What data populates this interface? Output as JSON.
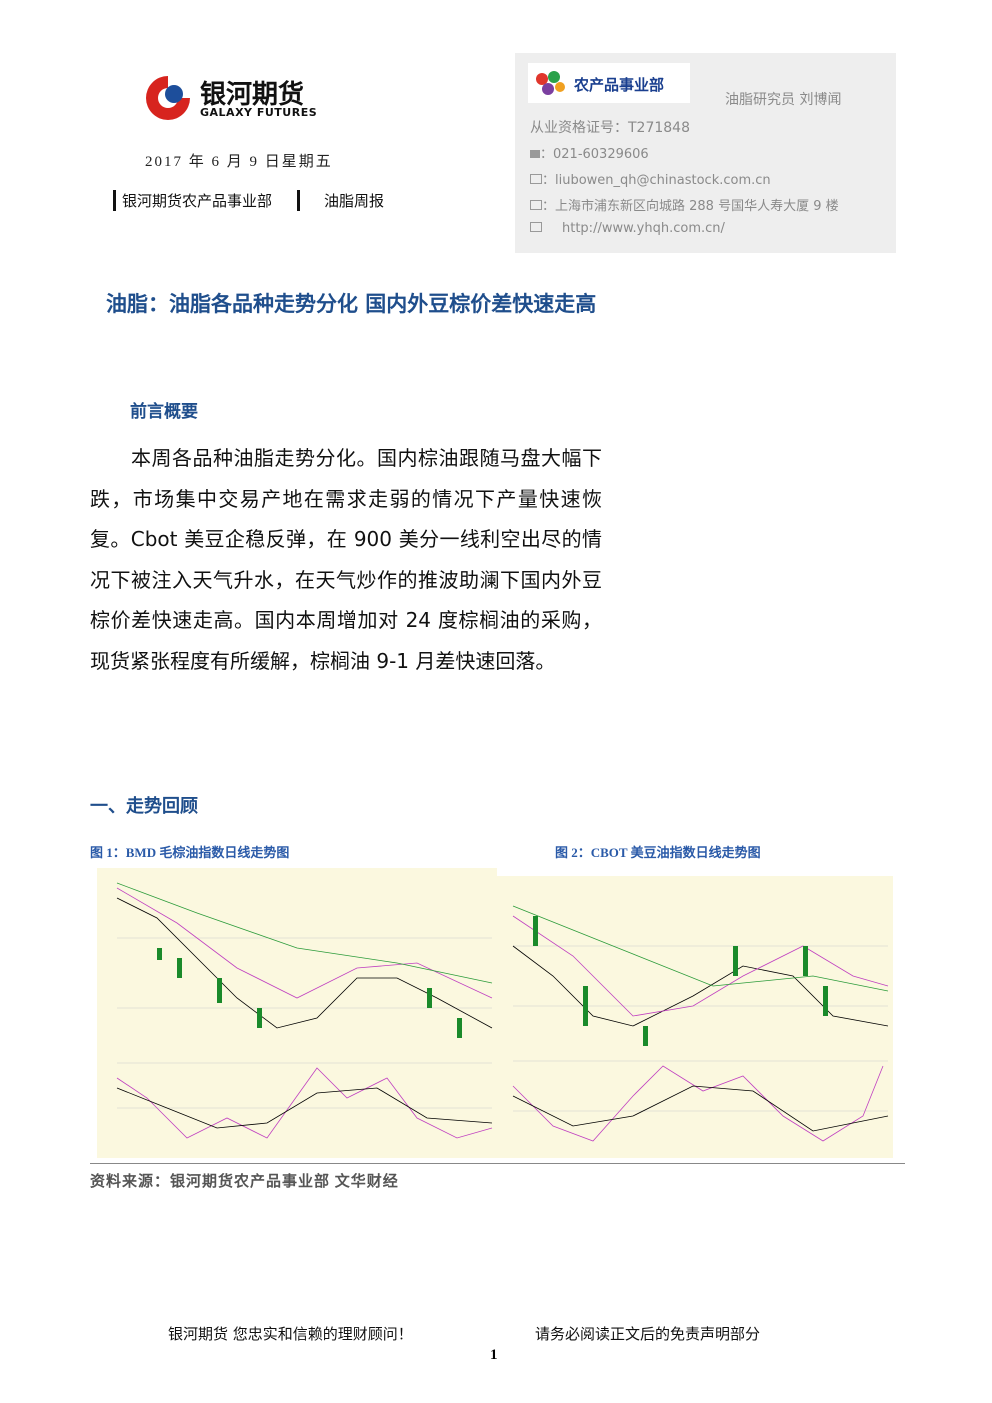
{
  "header": {
    "logo_cn": "银河期货",
    "logo_en": "GALAXY FUTURES",
    "date": "2017 年 6 月 9 日星期五",
    "department": "银河期货农产品事业部",
    "report": "油脂周报"
  },
  "contact": {
    "badge": "农产品事业部",
    "role": "油脂研究员 刘博闻",
    "cert": "从业资格证号：T271848",
    "phone": "：021-60329606",
    "email": "：liubowen_qh@chinastock.com.cn",
    "address": "：上海市浦东新区向城路 288 号国华人寿大厦 9 楼",
    "web": "http://www.yhqh.com.cn/"
  },
  "title": "油脂：油脂各品种走势分化 国内外豆棕价差快速走高",
  "summary": {
    "heading": "前言概要",
    "text": "本周各品种油脂走势分化。国内棕油跟随马盘大幅下跌，市场集中交易产地在需求走弱的情况下产量快速恢复。Cbot 美豆企稳反弹，在 900 美分一线利空出尽的情况下被注入天气升水，在天气炒作的推波助澜下国内外豆棕价差快速走高。国内本周增加对 24 度棕榈油的采购，现货紧张程度有所缓解，棕榈油 9-1 月差快速回落。"
  },
  "review": {
    "heading": "一、走势回顾",
    "figures": [
      "图 1：BMD 毛棕油指数日线走势图",
      "图 2：CBOT 美豆油指数日线走势图"
    ],
    "source": "资料来源：银河期货农产品事业部 文华财经"
  },
  "footer": {
    "slogan": "银河期货 您忠实和信赖的理财顾问！",
    "disclaimer": "请务必阅读正文后的免责声明部分",
    "page": "1"
  }
}
